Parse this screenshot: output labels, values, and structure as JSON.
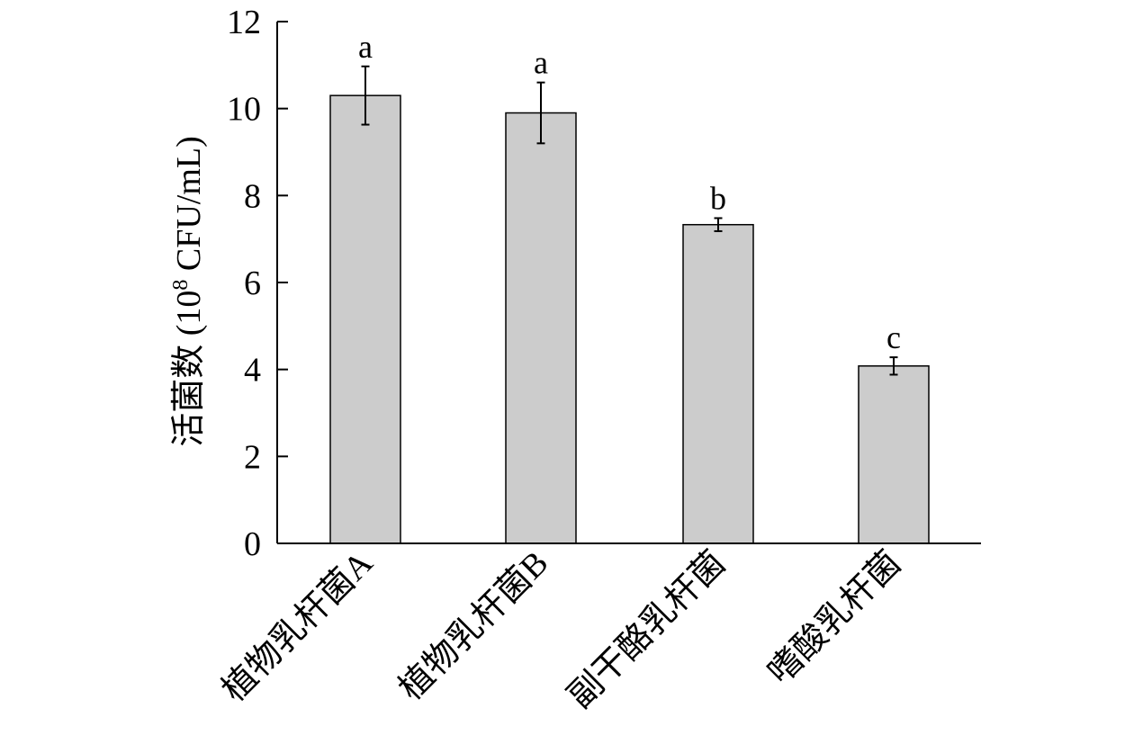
{
  "chart_data": {
    "type": "bar",
    "title": "",
    "xlabel": "",
    "ylabel_main": "活菌数 (10",
    "ylabel_sup": "8",
    "ylabel_tail": " CFU/mL)",
    "ylim": [
      0,
      12
    ],
    "yticks": [
      0,
      2,
      4,
      6,
      8,
      10,
      12
    ],
    "categories": [
      "植物乳杆菌A",
      "植物乳杆菌B",
      "副干酪乳杆菌",
      "嗜酸乳杆菌"
    ],
    "values": [
      10.3,
      9.9,
      7.33,
      4.08
    ],
    "errors": [
      0.67,
      0.7,
      0.15,
      0.2
    ],
    "significance": [
      "a",
      "a",
      "b",
      "c"
    ],
    "bar_color": "#cccccc",
    "grid": false,
    "legend": "none"
  }
}
